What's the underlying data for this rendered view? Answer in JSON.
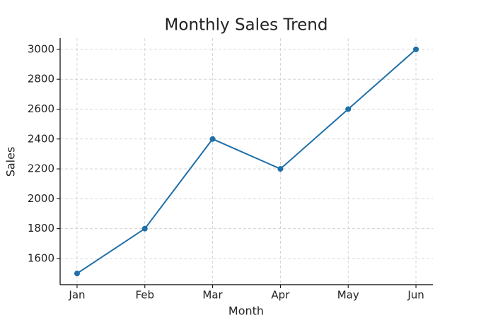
{
  "chart_data": {
    "type": "line",
    "title": "Monthly Sales Trend",
    "x_label": "Month",
    "y_label": "Sales",
    "categories": [
      "Jan",
      "Feb",
      "Mar",
      "Apr",
      "May",
      "Jun"
    ],
    "series": [
      {
        "name": "Sales",
        "color": "#1f6fa8",
        "values": [
          1500,
          1800,
          2400,
          2200,
          2600,
          3000
        ]
      }
    ],
    "ylim": [
      1425,
      3075
    ],
    "yticks": [
      1600,
      1800,
      2000,
      2200,
      2400,
      2600,
      2800,
      3000
    ],
    "grid": true
  }
}
